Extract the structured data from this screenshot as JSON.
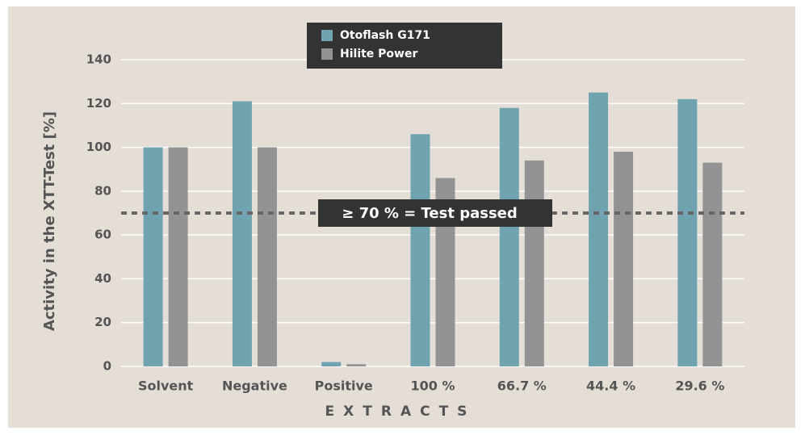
{
  "chart_data": {
    "type": "bar",
    "ylabel": "Activity in the XTT-Test [%]",
    "xlabel": "EXTRACTS",
    "categories": [
      "Solvent",
      "Negative",
      "Positive",
      "100 %",
      "66.7 %",
      "44.4 %",
      "29.6 %"
    ],
    "series": [
      {
        "name": "Otoflash G171",
        "color": "#6fa3b0",
        "values": [
          100,
          121,
          2,
          106,
          118,
          125,
          122
        ]
      },
      {
        "name": "Hilite Power",
        "color": "#939393",
        "values": [
          100,
          100,
          1,
          86,
          94,
          98,
          93
        ]
      }
    ],
    "ylim": [
      0,
      140
    ],
    "yticks": [
      0,
      20,
      40,
      60,
      80,
      100,
      120,
      140
    ],
    "grid": true,
    "legend": "top",
    "threshold": {
      "value": 70,
      "label": "≥ 70 % = Test passed"
    }
  }
}
